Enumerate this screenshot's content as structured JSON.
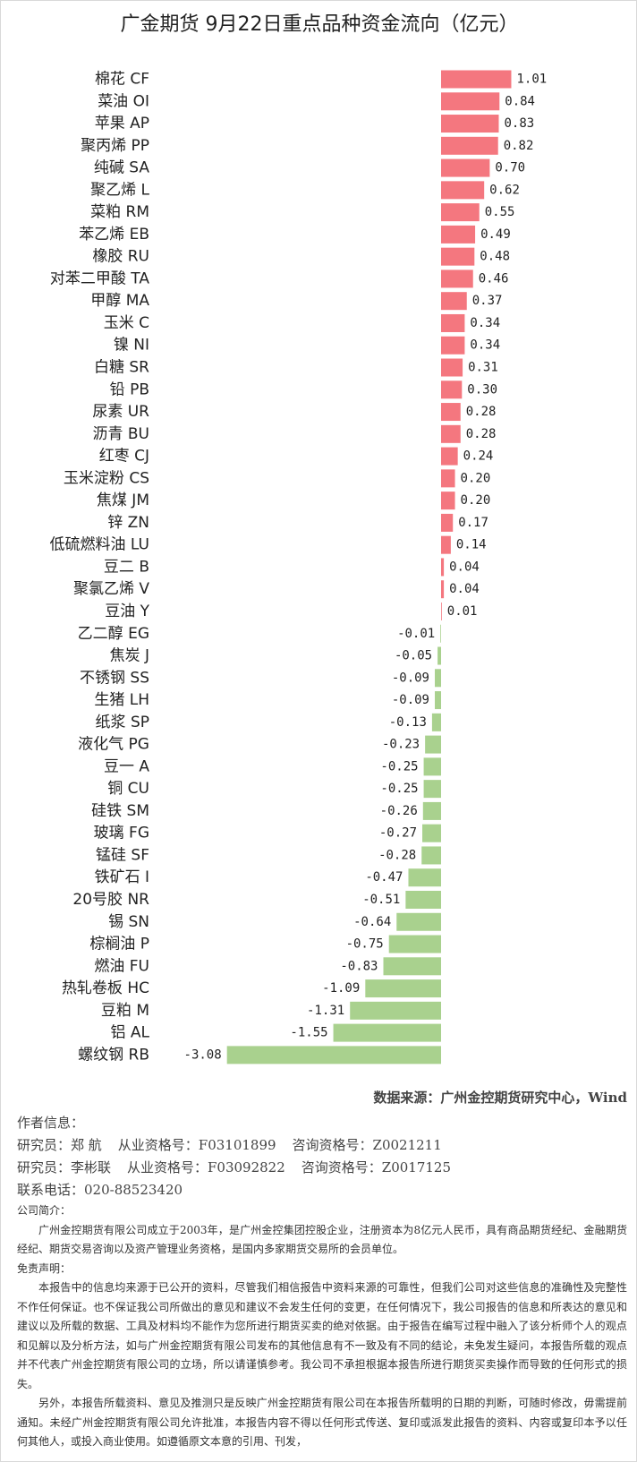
{
  "chart_data": {
    "type": "bar",
    "orientation": "horizontal",
    "title": "广金期货 9月22日重点品种资金流向（亿元）",
    "categories": [
      "棉花 CF",
      "菜油 OI",
      "苹果 AP",
      "聚丙烯 PP",
      "纯碱 SA",
      "聚乙烯 L",
      "菜粕 RM",
      "苯乙烯 EB",
      "橡胶 RU",
      "对苯二甲酸 TA",
      "甲醇 MA",
      "玉米 C",
      "镍 NI",
      "白糖 SR",
      "铅 PB",
      "尿素 UR",
      "沥青 BU",
      "红枣 CJ",
      "玉米淀粉 CS",
      "焦煤 JM",
      "锌 ZN",
      "低硫燃料油 LU",
      "豆二 B",
      "聚氯乙烯 V",
      "豆油 Y",
      "乙二醇 EG",
      "焦炭 J",
      "不锈钢 SS",
      "生猪 LH",
      "纸浆 SP",
      "液化气 PG",
      "豆一 A",
      "铜 CU",
      "硅铁 SM",
      "玻璃 FG",
      "锰硅 SF",
      "铁矿石 I",
      "20号胶 NR",
      "锡 SN",
      "棕榈油 P",
      "燃油 FU",
      "热轧卷板 HC",
      "豆粕 M",
      "铝 AL",
      "螺纹钢 RB"
    ],
    "values": [
      1.01,
      0.84,
      0.83,
      0.82,
      0.7,
      0.62,
      0.55,
      0.49,
      0.48,
      0.46,
      0.37,
      0.34,
      0.34,
      0.31,
      0.3,
      0.28,
      0.28,
      0.24,
      0.2,
      0.2,
      0.17,
      0.14,
      0.04,
      0.04,
      0.01,
      -0.01,
      -0.05,
      -0.09,
      -0.09,
      -0.13,
      -0.23,
      -0.25,
      -0.25,
      -0.26,
      -0.27,
      -0.28,
      -0.47,
      -0.51,
      -0.64,
      -0.75,
      -0.83,
      -1.09,
      -1.31,
      -1.55,
      -3.08
    ],
    "value_labels": [
      "1.01",
      "0.84",
      "0.83",
      "0.82",
      "0.70",
      "0.62",
      "0.55",
      "0.49",
      "0.48",
      "0.46",
      "0.37",
      "0.34",
      "0.34",
      "0.31",
      "0.30",
      "0.28",
      "0.28",
      "0.24",
      "0.20",
      "0.20",
      "0.17",
      "0.14",
      "0.04",
      "0.04",
      "0.01",
      "-0.01",
      "-0.05",
      "-0.09",
      "-0.09",
      "-0.13",
      "-0.23",
      "-0.25",
      "-0.25",
      "-0.26",
      "-0.27",
      "-0.28",
      "-0.47",
      "-0.51",
      "-0.64",
      "-0.75",
      "-0.83",
      "-1.09",
      "-1.31",
      "-1.55",
      "-3.08"
    ],
    "colors": {
      "positive": "#f4777f",
      "negative": "#a9d18e"
    }
  },
  "source": "数据来源：广州金控期货研究中心，Wind",
  "author": {
    "heading": "作者信息：",
    "researchers": [
      {
        "name": "研究员：郑 航",
        "license": "从业资格号：F03101899",
        "consult": "咨询资格号：Z0021211"
      },
      {
        "name": "研究员：李彬联",
        "license": "从业资格号：F03092822",
        "consult": "咨询资格号：Z0017125"
      }
    ],
    "phone": "联系电话：020-88523420"
  },
  "company": {
    "heading": "公司简介：",
    "text": "广州金控期货有限公司成立于2003年，是广州金控集团控股企业，注册资本为8亿元人民币，具有商品期货经纪、金融期货经纪、期货交易咨询以及资产管理业务资格，是国内多家期货交易所的会员单位。"
  },
  "disclaimer": {
    "heading": "免责声明：",
    "paragraphs": [
      "本报告中的信息均来源于已公开的资料，尽管我们相信报告中资料来源的可靠性，但我们公司对这些信息的准确性及完整性不作任何保证。也不保证我公司所做出的意见和建议不会发生任何的变更，在任何情况下，我公司报告的信息和所表达的意见和建议以及所载的数据、工具及材料均不能作为您所进行期货买卖的绝对依据。由于报告在编写过程中融入了该分析师个人的观点和见解以及分析方法，如与广州金控期货有限公司发布的其他信息有不一致及有不同的结论，未免发生疑问，本报告所载的观点并不代表广州金控期货有限公司的立场，所以请谨慎参考。我公司不承担根据本报告所进行期货买卖操作而导致的任何形式的损失。",
      "另外，本报告所载资料、意见及推测只是反映广州金控期货有限公司在本报告所载明的日期的判断，可随时修改，毋需提前通知。未经广州金控期货有限公司允许批准，本报告内容不得以任何形式传送、复印或派发此报告的资料、内容或复印本予以任何其他人，或投入商业使用。如遵循原文本意的引用、刊发，"
    ]
  }
}
